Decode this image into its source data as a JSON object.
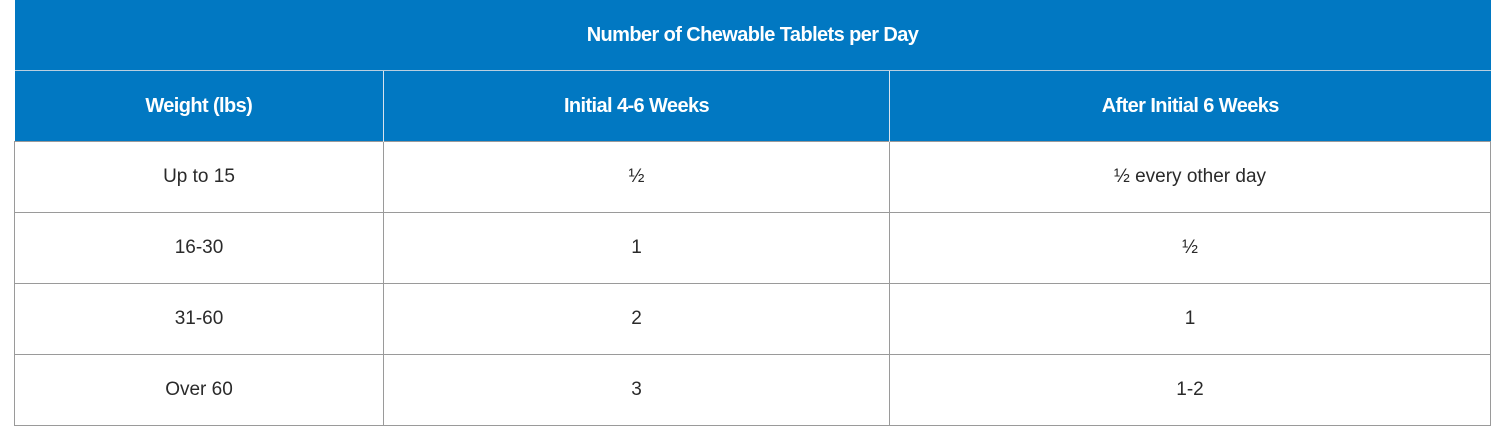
{
  "table": {
    "title": "Number of Chewable Tablets per Day",
    "headers": [
      "Weight (lbs)",
      "Initial 4-6 Weeks",
      "After Initial 6 Weeks"
    ],
    "rows": [
      [
        "Up to 15",
        "½",
        "½ every other day"
      ],
      [
        "16-30",
        "1",
        "½"
      ],
      [
        "31-60",
        "2",
        "1"
      ],
      [
        "Over 60",
        "3",
        "1-2"
      ]
    ]
  },
  "colors": {
    "header_background": "#0178c2",
    "header_text": "#ffffff",
    "cell_text": "#2a2a2a",
    "grid_line": "#9a9a9a"
  }
}
